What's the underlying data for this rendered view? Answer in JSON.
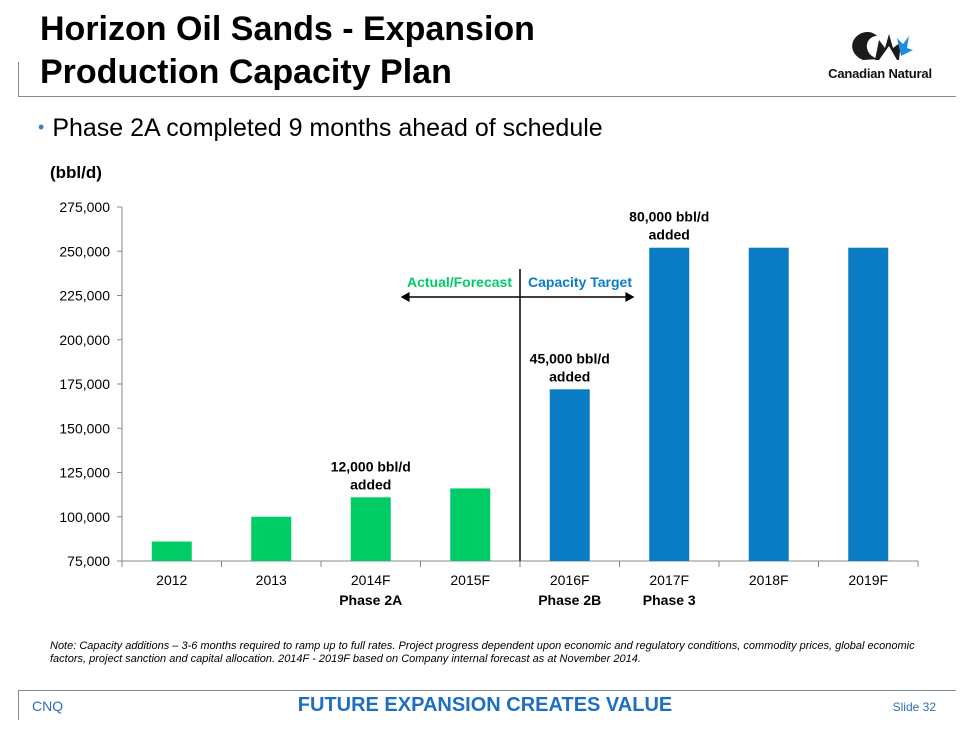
{
  "slide": {
    "title_line1": "Horizon Oil Sands - Expansion",
    "title_line2": "Production Capacity Plan",
    "logo_text": "Canadian Natural",
    "bullet": "Phase 2A completed 9 months ahead of schedule",
    "unit_label": "(bbl/d)",
    "note": "Note: Capacity additions – 3-6 months required to ramp up to full rates. Project progress dependent upon economic and regulatory conditions, commodity prices, global economic factors, project sanction and capital allocation. 2014F - 2019F based on Company internal forecast as at November 2014.",
    "footer_left": "CNQ",
    "footer_center": "FUTURE EXPANSION CREATES VALUE",
    "footer_right": "Slide 32"
  },
  "colors": {
    "actual": "#00cc66",
    "target": "#0a7cc4",
    "footer_blue": "#1e6fc2"
  },
  "chart_data": {
    "type": "bar",
    "categories": [
      "2012",
      "2013",
      "2014F",
      "2015F",
      "2016F",
      "2017F",
      "2018F",
      "2019F"
    ],
    "values": [
      86000,
      100000,
      111000,
      116000,
      172000,
      252000,
      252000,
      252000
    ],
    "phase_labels": [
      "",
      "",
      "Phase 2A",
      "",
      "Phase 2B",
      "Phase 3",
      "",
      ""
    ],
    "bar_groups": [
      "actual",
      "actual",
      "actual",
      "actual",
      "target",
      "target",
      "target",
      "target"
    ],
    "yticks": [
      "75,000",
      "100,000",
      "125,000",
      "150,000",
      "175,000",
      "200,000",
      "225,000",
      "250,000",
      "275,000"
    ],
    "ylim": [
      75000,
      275000
    ],
    "xlabel": "",
    "ylabel": "(bbl/d)",
    "divider_label_left": "Actual/Forecast",
    "divider_label_right": "Capacity Target",
    "annotations": [
      {
        "category": "2014F",
        "line1": "12,000 bbl/d",
        "line2": "added"
      },
      {
        "category": "2016F",
        "line1": "45,000 bbl/d",
        "line2": "added"
      },
      {
        "category": "2017F",
        "line1": "80,000 bbl/d",
        "line2": "added"
      }
    ]
  }
}
